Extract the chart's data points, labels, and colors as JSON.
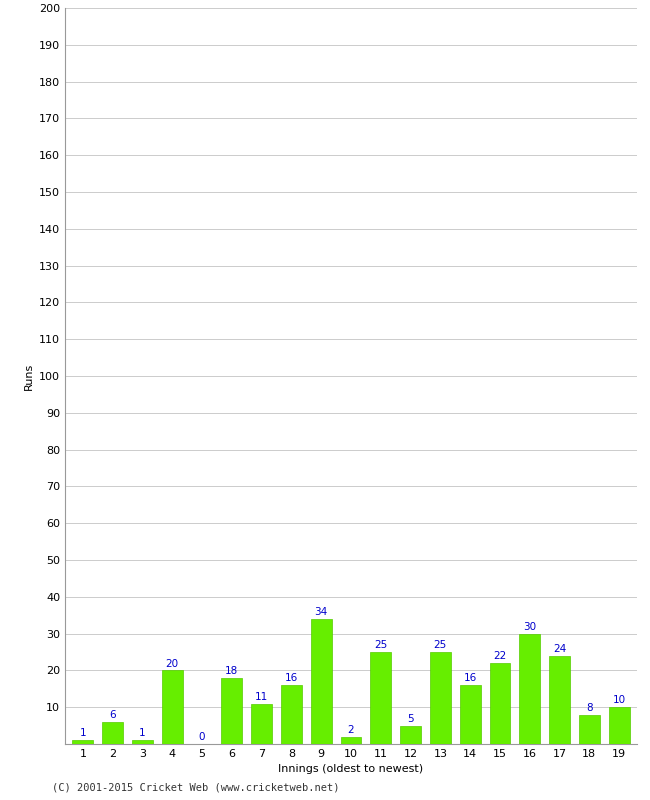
{
  "title": "",
  "xlabel": "Innings (oldest to newest)",
  "ylabel": "Runs",
  "categories": [
    1,
    2,
    3,
    4,
    5,
    6,
    7,
    8,
    9,
    10,
    11,
    12,
    13,
    14,
    15,
    16,
    17,
    18,
    19
  ],
  "values": [
    1,
    6,
    1,
    20,
    0,
    18,
    11,
    16,
    34,
    2,
    25,
    5,
    25,
    16,
    22,
    30,
    24,
    8,
    10
  ],
  "bar_color": "#66ee00",
  "bar_edge_color": "#55cc00",
  "label_color": "#0000cc",
  "ylim": [
    0,
    200
  ],
  "yticks": [
    0,
    10,
    20,
    30,
    40,
    50,
    60,
    70,
    80,
    90,
    100,
    110,
    120,
    130,
    140,
    150,
    160,
    170,
    180,
    190,
    200
  ],
  "background_color": "#ffffff",
  "plot_bg_color": "#ffffff",
  "grid_color": "#cccccc",
  "footer": "(C) 2001-2015 Cricket Web (www.cricketweb.net)",
  "axis_label_fontsize": 8,
  "tick_fontsize": 8,
  "bar_label_fontsize": 7.5
}
